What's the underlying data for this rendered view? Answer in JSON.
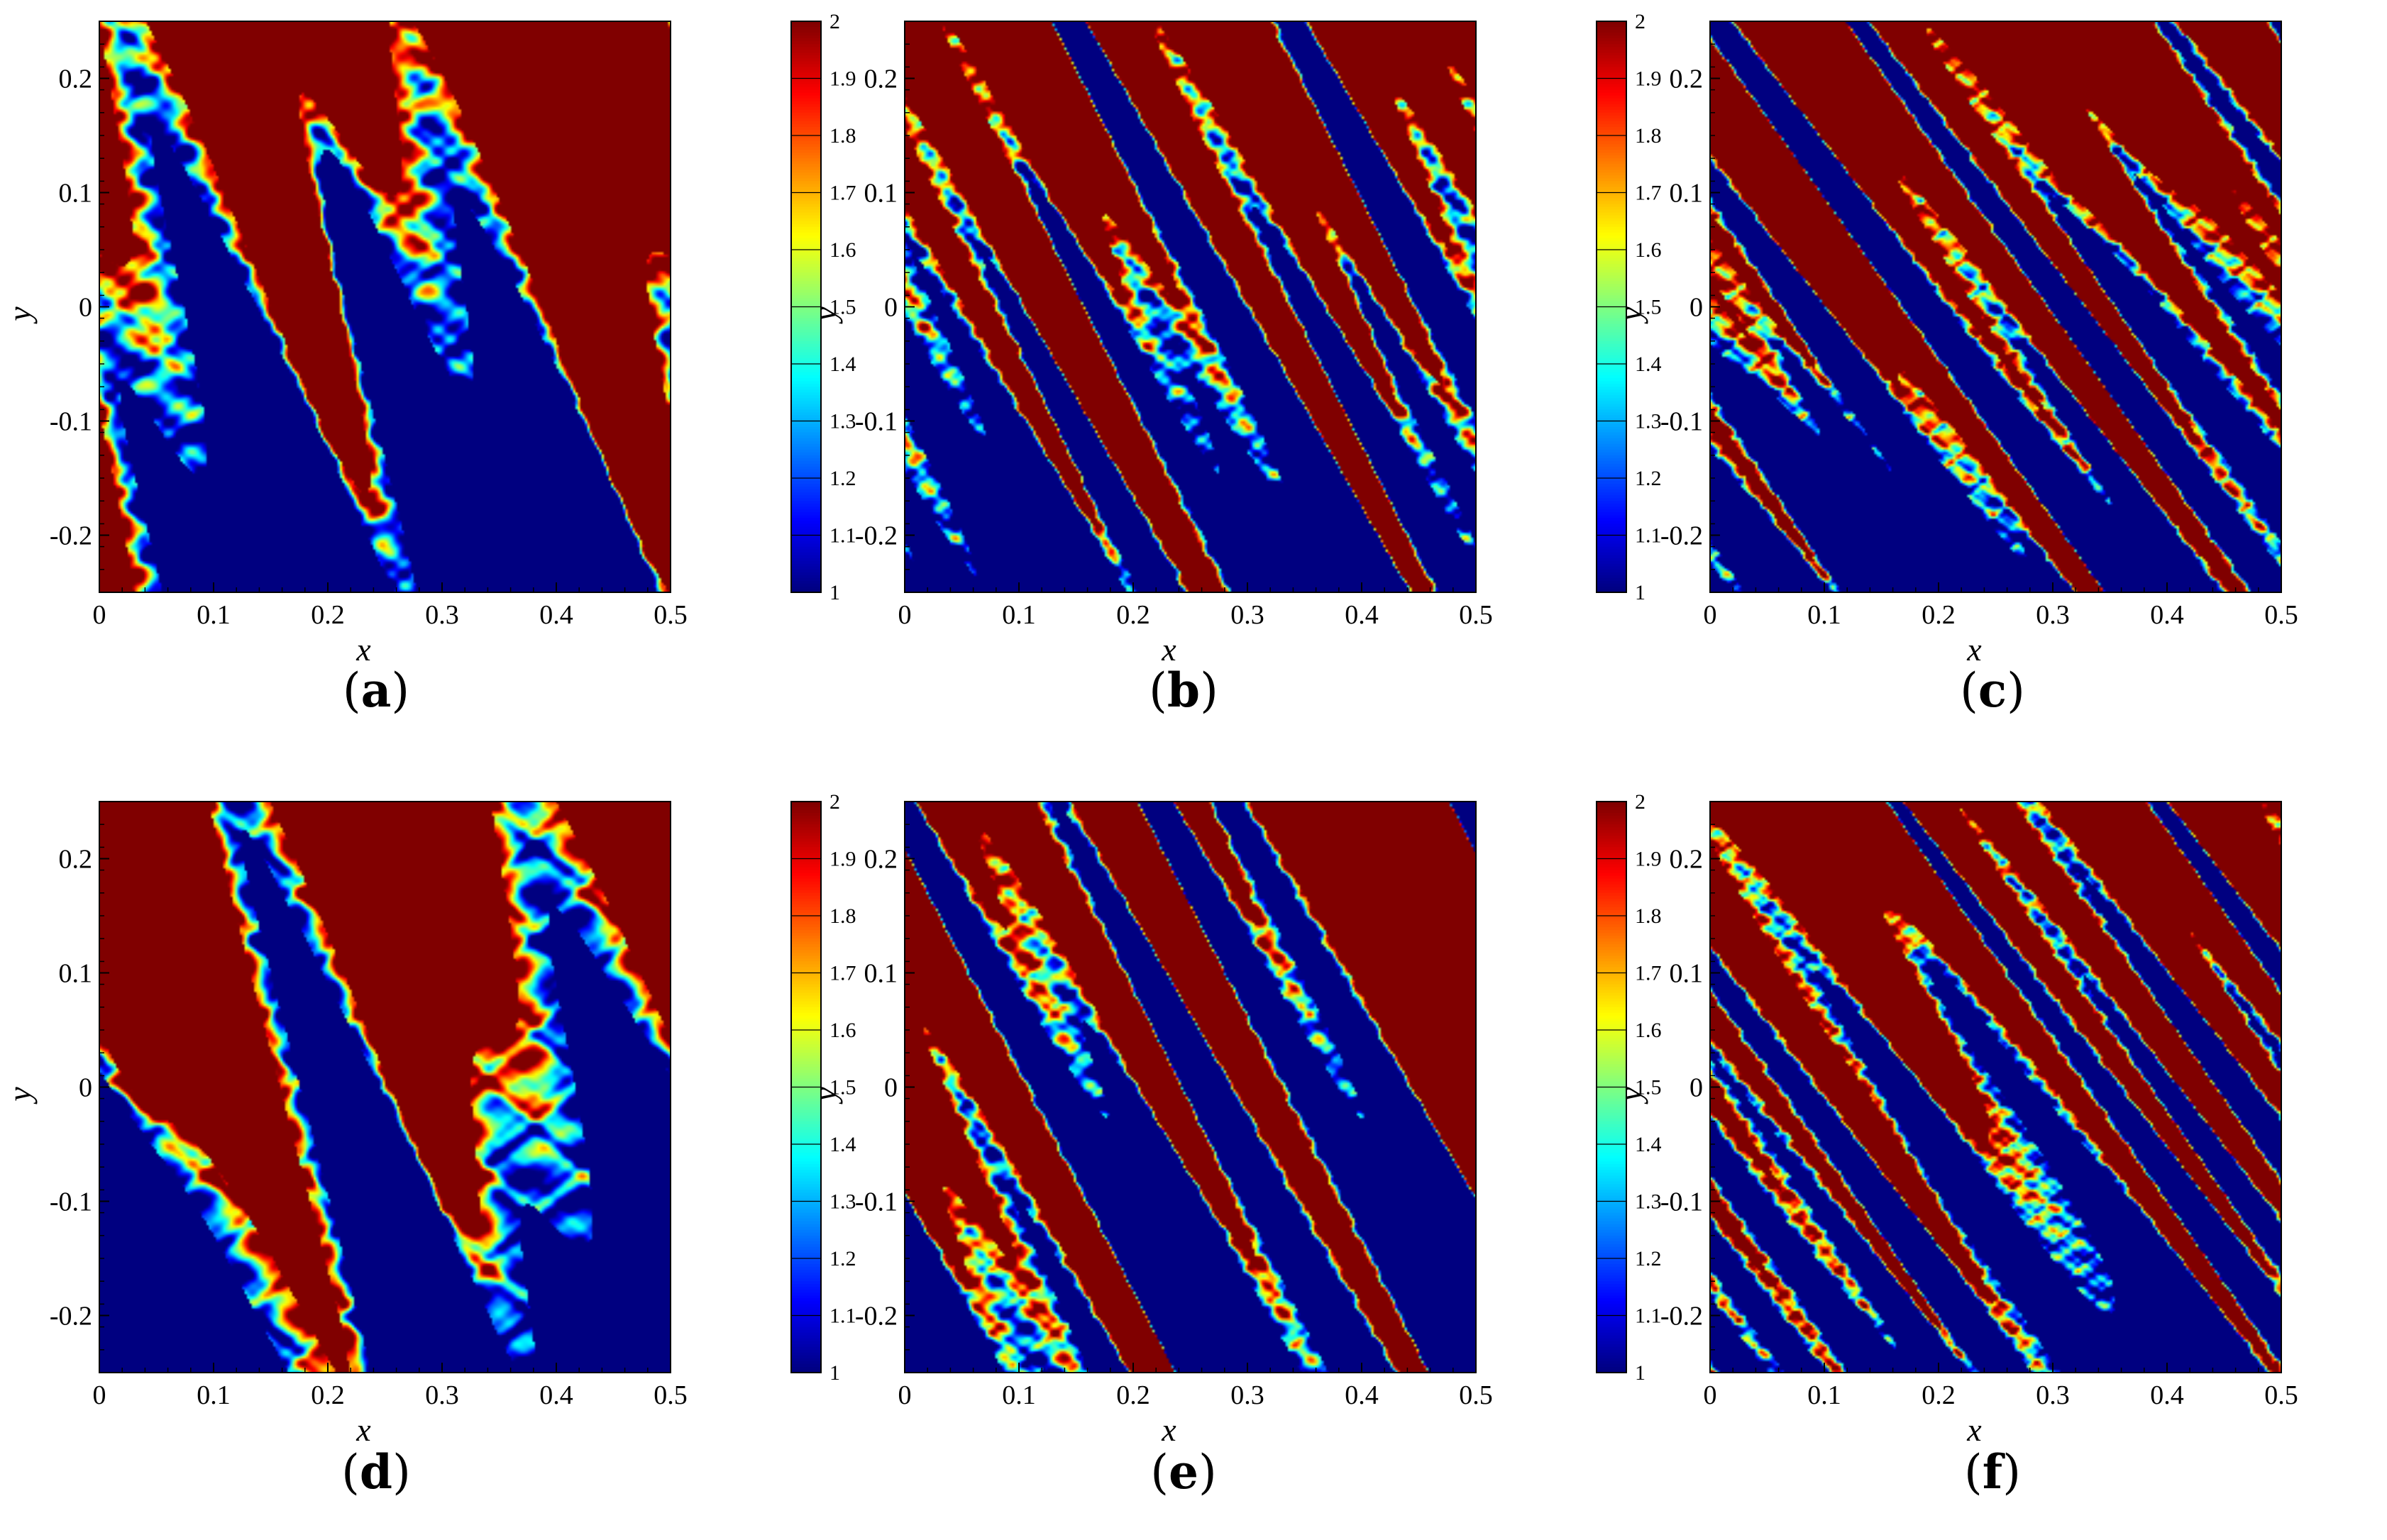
{
  "chart_data": [
    {
      "type": "heatmap",
      "panel": "(a)",
      "xlabel": "x",
      "ylabel": "y",
      "xlim": [
        0,
        0.5
      ],
      "ylim": [
        -0.25,
        0.25
      ],
      "xticks": [
        "0",
        "0.1",
        "0.2",
        "0.3",
        "0.4",
        "0.5"
      ],
      "yticks": [
        "-0.2",
        "-0.1",
        "0",
        "0.1",
        "0.2"
      ],
      "colorbar": {
        "range": [
          1,
          2
        ],
        "ticks": [
          "1",
          "1.1",
          "1.2",
          "1.3",
          "1.4",
          "1.5",
          "1.6",
          "1.7",
          "1.8",
          "1.9",
          "2"
        ],
        "colormap": "jet"
      },
      "field": {
        "upper_value": 2,
        "lower_value": 1,
        "mixing_scale": 0.03,
        "modes": 3,
        "seed": 1
      }
    },
    {
      "type": "heatmap",
      "panel": "(b)",
      "xlabel": "x",
      "ylabel": "y",
      "xlim": [
        0,
        0.5
      ],
      "ylim": [
        -0.25,
        0.25
      ],
      "xticks": [
        "0",
        "0.1",
        "0.2",
        "0.3",
        "0.4",
        "0.5"
      ],
      "yticks": [
        "-0.2",
        "-0.1",
        "0",
        "0.1",
        "0.2"
      ],
      "colorbar": {
        "range": [
          1,
          2
        ],
        "ticks": [
          "1",
          "1.1",
          "1.2",
          "1.3",
          "1.4",
          "1.5",
          "1.6",
          "1.7",
          "1.8",
          "1.9",
          "2"
        ],
        "colormap": "jet"
      },
      "field": {
        "upper_value": 2,
        "lower_value": 1,
        "mixing_scale": 0.015,
        "modes": 6,
        "seed": 2
      }
    },
    {
      "type": "heatmap",
      "panel": "(c)",
      "xlabel": "x",
      "ylabel": "y",
      "xlim": [
        0,
        0.5
      ],
      "ylim": [
        -0.25,
        0.25
      ],
      "xticks": [
        "0",
        "0.1",
        "0.2",
        "0.3",
        "0.4",
        "0.5"
      ],
      "yticks": [
        "-0.2",
        "-0.1",
        "0",
        "0.1",
        "0.2"
      ],
      "colorbar": {
        "range": [
          1,
          2
        ],
        "ticks": [
          "1",
          "1.1",
          "1.2",
          "1.3",
          "1.4",
          "1.5",
          "1.6",
          "1.7",
          "1.8",
          "1.9",
          "2"
        ],
        "colormap": "jet"
      },
      "field": {
        "upper_value": 2,
        "lower_value": 1,
        "mixing_scale": 0.008,
        "modes": 9,
        "seed": 3
      }
    },
    {
      "type": "heatmap",
      "panel": "(d)",
      "xlabel": "x",
      "ylabel": "y",
      "xlim": [
        0,
        0.5
      ],
      "ylim": [
        -0.25,
        0.25
      ],
      "xticks": [
        "0",
        "0.1",
        "0.2",
        "0.3",
        "0.4",
        "0.5"
      ],
      "yticks": [
        "-0.2",
        "-0.1",
        "0",
        "0.1",
        "0.2"
      ],
      "colorbar": {
        "range": [
          1,
          2
        ],
        "ticks": [
          "1",
          "1.1",
          "1.2",
          "1.3",
          "1.4",
          "1.5",
          "1.6",
          "1.7",
          "1.8",
          "1.9",
          "2"
        ],
        "colormap": "jet"
      },
      "field": {
        "upper_value": 2,
        "lower_value": 1,
        "mixing_scale": 0.03,
        "modes": 3,
        "seed": 4
      }
    },
    {
      "type": "heatmap",
      "panel": "(e)",
      "xlabel": "x",
      "ylabel": "y",
      "xlim": [
        0,
        0.5
      ],
      "ylim": [
        -0.25,
        0.25
      ],
      "xticks": [
        "0",
        "0.1",
        "0.2",
        "0.3",
        "0.4",
        "0.5"
      ],
      "yticks": [
        "-0.2",
        "-0.1",
        "0",
        "0.1",
        "0.2"
      ],
      "colorbar": {
        "range": [
          1,
          2
        ],
        "ticks": [
          "1",
          "1.1",
          "1.2",
          "1.3",
          "1.4",
          "1.5",
          "1.6",
          "1.7",
          "1.8",
          "1.9",
          "2"
        ],
        "colormap": "jet"
      },
      "field": {
        "upper_value": 2,
        "lower_value": 1,
        "mixing_scale": 0.015,
        "modes": 6,
        "seed": 5
      }
    },
    {
      "type": "heatmap",
      "panel": "(f)",
      "xlabel": "x",
      "ylabel": "y",
      "xlim": [
        0,
        0.5
      ],
      "ylim": [
        -0.25,
        0.25
      ],
      "xticks": [
        "0",
        "0.1",
        "0.2",
        "0.3",
        "0.4",
        "0.5"
      ],
      "yticks": [
        "-0.2",
        "-0.1",
        "0",
        "0.1",
        "0.2"
      ],
      "colorbar": {
        "range": [
          1,
          2
        ],
        "ticks": [
          "1",
          "1.1",
          "1.2",
          "1.3",
          "1.4",
          "1.5",
          "1.6",
          "1.7",
          "1.8",
          "1.9",
          "2"
        ],
        "colormap": "jet"
      },
      "field": {
        "upper_value": 2,
        "lower_value": 1,
        "mixing_scale": 0.008,
        "modes": 9,
        "seed": 6
      }
    }
  ],
  "captions": [
    "(a)",
    "(b)",
    "(c)",
    "(d)",
    "(e)",
    "(f)"
  ],
  "colors": {
    "jet_low": "#00007f",
    "jet_high": "#7f0000"
  }
}
